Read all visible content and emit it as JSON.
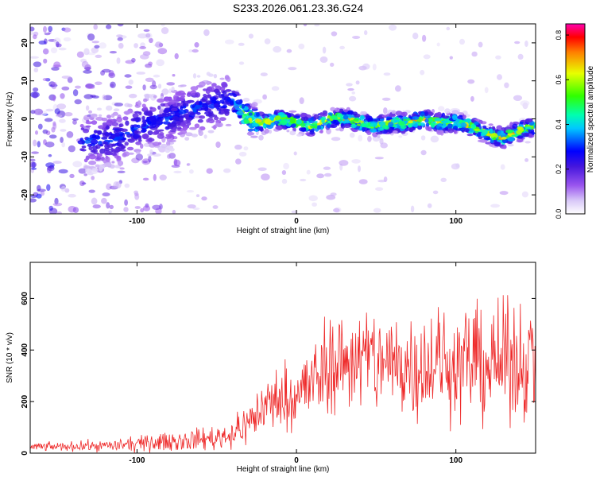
{
  "title": "S233.2026.061.23.36.G24",
  "chart_data": [
    {
      "type": "heatmap",
      "xlabel": "Height of straight line (km)",
      "ylabel": "Frequency (Hz)",
      "xlim": [
        -167,
        150
      ],
      "ylim": [
        -25,
        25
      ],
      "xticks": [
        -100,
        0,
        100
      ],
      "xtick_labels": [
        "-100",
        "0",
        "100"
      ],
      "yticks": [
        -20,
        -10,
        0,
        10,
        20
      ],
      "ytick_labels": [
        "-20",
        "-10",
        "0",
        "10",
        "20"
      ],
      "ridge": {
        "x": [
          -130,
          -110,
          -100,
          -90,
          -80,
          -70,
          -60,
          -50,
          -40,
          -35,
          -30,
          -20,
          -10,
          0,
          10,
          20,
          30,
          40,
          50,
          60,
          70,
          80,
          90,
          100,
          110,
          120,
          130,
          140,
          150
        ],
        "freq": [
          -6,
          -5,
          -2,
          -1,
          0,
          2,
          3,
          4,
          5,
          2,
          0,
          -1,
          0,
          -1,
          -2,
          0,
          0,
          -1,
          -2,
          -1,
          -1,
          0,
          -1,
          -1,
          -2,
          -4,
          -5,
          -3,
          -2
        ]
      },
      "colorbar": {
        "label": "Normalized spectral amplitude",
        "range": [
          0,
          0.85
        ],
        "ticks": [
          0,
          0.2,
          0.4,
          0.6,
          0.8
        ],
        "tick_labels": [
          "0.0",
          "0.2",
          "0.4",
          "0.6",
          "0.8"
        ]
      }
    },
    {
      "type": "line",
      "xlabel": "Height of straight line (km)",
      "ylabel": "SNR (10 * v/v)",
      "xlim": [
        -167,
        150
      ],
      "ylim": [
        0,
        740
      ],
      "xticks": [
        -100,
        0,
        100
      ],
      "xtick_labels": [
        "-100",
        "0",
        "100"
      ],
      "yticks": [
        0,
        200,
        400,
        600
      ],
      "ytick_labels": [
        "0",
        "200",
        "400",
        "600"
      ],
      "series": [
        {
          "name": "SNR",
          "color": "#ee2a2a",
          "x": [
            -167,
            -150,
            -130,
            -110,
            -100,
            -90,
            -80,
            -70,
            -60,
            -50,
            -40,
            -35,
            -30,
            -25,
            -20,
            -15,
            -10,
            -5,
            0,
            5,
            10,
            15,
            20,
            30,
            40,
            50,
            60,
            70,
            80,
            90,
            100,
            110,
            120,
            130,
            140,
            150
          ],
          "values": [
            25,
            25,
            28,
            30,
            35,
            40,
            45,
            50,
            55,
            60,
            75,
            95,
            120,
            150,
            185,
            200,
            210,
            220,
            230,
            250,
            270,
            300,
            330,
            360,
            370,
            360,
            350,
            345,
            350,
            345,
            350,
            355,
            345,
            350,
            360,
            380
          ],
          "noise": [
            8,
            8,
            10,
            12,
            14,
            16,
            18,
            20,
            22,
            24,
            28,
            34,
            40,
            48,
            55,
            60,
            64,
            66,
            70,
            75,
            80,
            85,
            90,
            95,
            100,
            105,
            105,
            105,
            105,
            105,
            105,
            110,
            110,
            110,
            115,
            115
          ]
        }
      ]
    }
  ]
}
